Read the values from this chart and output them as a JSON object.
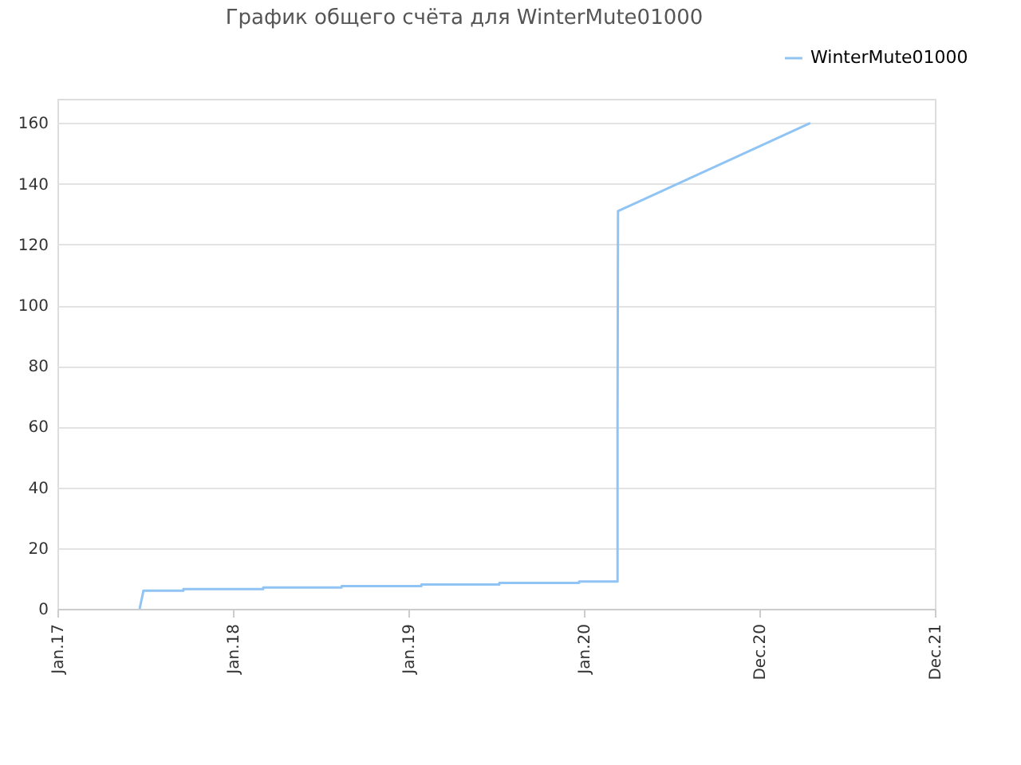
{
  "chart_data": {
    "type": "line",
    "title": "График общего счёта для WinterMute01000",
    "x": [
      "2017-06-21",
      "2017-06-29",
      "2017-09-20",
      "2017-09-20",
      "2018-03-05",
      "2018-03-05",
      "2018-08-15",
      "2018-08-15",
      "2019-01-28",
      "2019-01-28",
      "2019-07-09",
      "2019-07-09",
      "2019-12-22",
      "2019-12-22",
      "2020-03-11",
      "2020-03-11",
      "2020-03-12",
      "2021-04-16"
    ],
    "series": [
      {
        "name": "WinterMute01000",
        "color": "#90c4f4",
        "values": [
          0,
          6,
          6,
          6.5,
          6.5,
          7,
          7,
          7.5,
          7.5,
          8,
          8,
          8.5,
          8.5,
          9,
          9,
          62,
          131,
          160
        ]
      }
    ],
    "xlim": [
      "2017-01-01",
      "2021-12-31"
    ],
    "xticks": [
      {
        "value": "2017-01-01",
        "label": "Jan.17"
      },
      {
        "value": "2018-01-01",
        "label": "Jan.18"
      },
      {
        "value": "2019-01-01",
        "label": "Jan.19"
      },
      {
        "value": "2020-01-01",
        "label": "Jan.20"
      },
      {
        "value": "2020-12-31",
        "label": "Dec.20"
      },
      {
        "value": "2021-12-31",
        "label": "Dec.21"
      }
    ],
    "ylim": [
      0,
      168
    ],
    "yticks": [
      0,
      20,
      40,
      60,
      80,
      100,
      120,
      140,
      160
    ],
    "grid": "y",
    "legend": "top right",
    "marker": "none",
    "line_style": "solid"
  }
}
